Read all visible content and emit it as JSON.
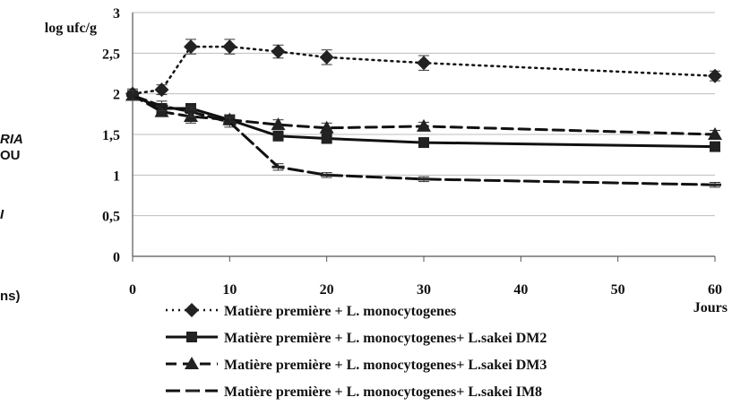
{
  "side_fragments": [
    "RIA",
    "OU",
    "I",
    "ns)"
  ],
  "chart_data": {
    "type": "line",
    "title": "",
    "ylabel": "log ufc/g",
    "xlabel": "Jours",
    "x_ticks": [
      0,
      10,
      20,
      30,
      40,
      50,
      60
    ],
    "y_ticks": [
      "0",
      "0,5",
      "1",
      "1,5",
      "2",
      "2,5",
      "3"
    ],
    "xlim": [
      0,
      60
    ],
    "ylim": [
      0,
      3
    ],
    "grid": "horizontal",
    "legend_position": "bottom",
    "series": [
      {
        "name": "Matière première + L. monocytogenes",
        "style": "dotted",
        "marker": "diamond",
        "x": [
          0,
          3,
          6,
          10,
          15,
          20,
          30,
          60
        ],
        "y": [
          2.0,
          2.05,
          2.58,
          2.58,
          2.52,
          2.45,
          2.38,
          2.22
        ],
        "err": [
          0.06,
          0.06,
          0.09,
          0.09,
          0.08,
          0.09,
          0.09,
          0.06
        ]
      },
      {
        "name": "Matière première + L. monocytogenes+ L.sakei DM2",
        "style": "solid",
        "marker": "square",
        "x": [
          0,
          3,
          6,
          10,
          15,
          20,
          30,
          60
        ],
        "y": [
          1.98,
          1.82,
          1.82,
          1.68,
          1.48,
          1.45,
          1.4,
          1.35
        ],
        "err": [
          0.06,
          0.06,
          0.06,
          0.06,
          0.05,
          0.05,
          0.04,
          0.05
        ]
      },
      {
        "name": "Matière première + L. monocytogenes+ L.sakei DM3",
        "style": "dashed",
        "marker": "triangle",
        "x": [
          0,
          3,
          6,
          10,
          15,
          20,
          30,
          60
        ],
        "y": [
          1.98,
          1.78,
          1.72,
          1.68,
          1.62,
          1.58,
          1.6,
          1.5
        ],
        "err": [
          0.06,
          0.06,
          0.08,
          0.06,
          0.06,
          0.06,
          0.05,
          0.05
        ]
      },
      {
        "name": "Matière première + L. monocytogenes+ L.sakei IM8",
        "style": "longdash",
        "marker": "dash",
        "x": [
          0,
          3,
          6,
          10,
          15,
          20,
          30,
          60
        ],
        "y": [
          1.98,
          1.85,
          1.78,
          1.65,
          1.1,
          1.0,
          0.95,
          0.88
        ],
        "err": [
          0.06,
          0.06,
          0.06,
          0.06,
          0.04,
          0.03,
          0.03,
          0.03
        ]
      }
    ]
  }
}
